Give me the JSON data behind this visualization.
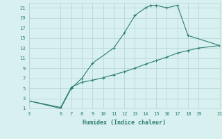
{
  "xlabel": "Humidex (Indice chaleur)",
  "line1_x": [
    3,
    6,
    7,
    8,
    9,
    11,
    12,
    13,
    14,
    14.5,
    15,
    16,
    17,
    18,
    21
  ],
  "line1_y": [
    2.5,
    1,
    5,
    7,
    10,
    13,
    16,
    19.5,
    21,
    21.5,
    21.5,
    21,
    21.5,
    15.5,
    13.5
  ],
  "line2_x": [
    3,
    6,
    7,
    8,
    9,
    10,
    11,
    12,
    13,
    14,
    15,
    16,
    17,
    18,
    19,
    21
  ],
  "line2_y": [
    2.5,
    1.2,
    5.2,
    6.2,
    6.6,
    7.1,
    7.7,
    8.3,
    9.0,
    9.8,
    10.5,
    11.2,
    12.0,
    12.5,
    13.0,
    13.5
  ],
  "line_color": "#2e7d70",
  "bg_color": "#d8f0f0",
  "grid_color": "#b8d8d8",
  "xlim": [
    3,
    21
  ],
  "ylim": [
    1,
    22
  ],
  "xticks": [
    3,
    6,
    7,
    8,
    9,
    10,
    11,
    12,
    13,
    14,
    15,
    16,
    17,
    18,
    19,
    21
  ],
  "yticks": [
    1,
    3,
    5,
    7,
    9,
    11,
    13,
    15,
    17,
    19,
    21
  ],
  "tick_fontsize": 5.0,
  "xlabel_fontsize": 6.0
}
